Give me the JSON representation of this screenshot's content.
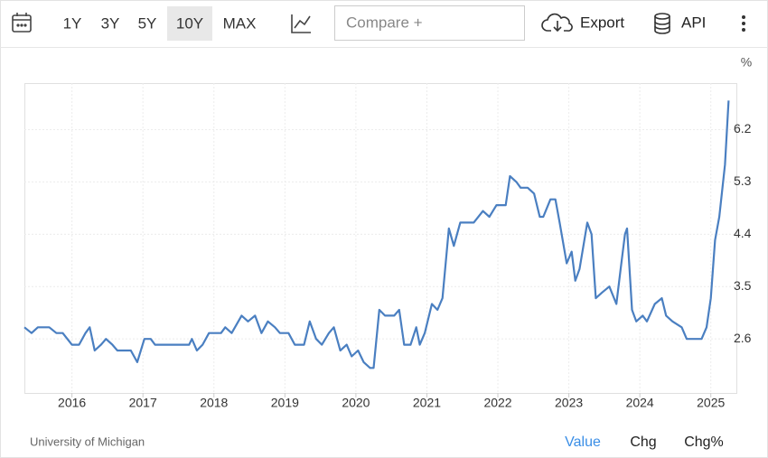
{
  "toolbar": {
    "ranges": [
      "1Y",
      "3Y",
      "5Y",
      "10Y",
      "MAX"
    ],
    "selected": 3,
    "compare": "Compare +",
    "export": "Export",
    "api": "API"
  },
  "footer": {
    "source": "University of Michigan",
    "tabs": [
      "Value",
      "Chg",
      "Chg%"
    ],
    "active": 0
  },
  "chart_data": {
    "type": "line",
    "y_label": "%",
    "color": "#4a7fc1",
    "grid": true,
    "xlim": [
      2015.33,
      2025.36
    ],
    "xticks": [
      2016,
      2017,
      2018,
      2019,
      2020,
      2021,
      2022,
      2023,
      2024,
      2025
    ],
    "ylim": [
      1.67,
      7.0
    ],
    "yticks": [
      2.6,
      3.5,
      4.4,
      5.3,
      6.2
    ],
    "x": [
      2015.33,
      2015.43,
      2015.52,
      2015.68,
      2015.78,
      2015.87,
      2016.0,
      2016.1,
      2016.19,
      2016.25,
      2016.32,
      2016.41,
      2016.48,
      2016.57,
      2016.64,
      2016.83,
      2016.92,
      2017.02,
      2017.11,
      2017.17,
      2017.27,
      2017.34,
      2017.65,
      2017.69,
      2017.76,
      2017.84,
      2017.93,
      2018.1,
      2018.16,
      2018.25,
      2018.39,
      2018.48,
      2018.58,
      2018.67,
      2018.76,
      2018.86,
      2018.93,
      2019.05,
      2019.14,
      2019.27,
      2019.35,
      2019.44,
      2019.52,
      2019.62,
      2019.69,
      2019.78,
      2019.87,
      2019.94,
      2020.03,
      2020.11,
      2020.2,
      2020.25,
      2020.33,
      2020.41,
      2020.54,
      2020.61,
      2020.68,
      2020.77,
      2020.85,
      2020.9,
      2020.97,
      2021.07,
      2021.15,
      2021.22,
      2021.31,
      2021.38,
      2021.47,
      2021.57,
      2021.66,
      2021.79,
      2021.88,
      2021.98,
      2022.04,
      2022.11,
      2022.17,
      2022.26,
      2022.32,
      2022.42,
      2022.51,
      2022.59,
      2022.64,
      2022.74,
      2022.81,
      2022.87,
      2022.97,
      2023.04,
      2023.09,
      2023.15,
      2023.26,
      2023.32,
      2023.38,
      2023.47,
      2023.57,
      2023.67,
      2023.73,
      2023.79,
      2023.82,
      2023.89,
      2023.95,
      2024.04,
      2024.1,
      2024.21,
      2024.31,
      2024.37,
      2024.46,
      2024.59,
      2024.66,
      2024.78,
      2024.87,
      2024.94,
      2025.0,
      2025.06,
      2025.12,
      2025.2,
      2025.25
    ],
    "values": [
      2.8,
      2.7,
      2.8,
      2.8,
      2.7,
      2.7,
      2.5,
      2.5,
      2.7,
      2.8,
      2.4,
      2.5,
      2.6,
      2.5,
      2.4,
      2.4,
      2.2,
      2.6,
      2.6,
      2.5,
      2.5,
      2.5,
      2.5,
      2.6,
      2.4,
      2.5,
      2.7,
      2.7,
      2.8,
      2.7,
      3.0,
      2.9,
      3.0,
      2.7,
      2.9,
      2.8,
      2.7,
      2.7,
      2.5,
      2.5,
      2.9,
      2.6,
      2.5,
      2.7,
      2.8,
      2.4,
      2.5,
      2.3,
      2.4,
      2.2,
      2.1,
      2.1,
      3.1,
      3.0,
      3.0,
      3.1,
      2.5,
      2.5,
      2.8,
      2.5,
      2.7,
      3.2,
      3.1,
      3.3,
      4.5,
      4.2,
      4.6,
      4.6,
      4.6,
      4.8,
      4.7,
      4.9,
      4.9,
      4.9,
      5.4,
      5.3,
      5.2,
      5.2,
      5.1,
      4.7,
      4.7,
      5.0,
      5.0,
      4.6,
      3.9,
      4.1,
      3.6,
      3.8,
      4.6,
      4.4,
      3.3,
      3.4,
      3.5,
      3.2,
      3.8,
      4.4,
      4.5,
      3.1,
      2.9,
      3.0,
      2.9,
      3.2,
      3.3,
      3.0,
      2.9,
      2.8,
      2.6,
      2.6,
      2.6,
      2.8,
      3.3,
      4.3,
      4.7,
      5.6,
      6.7
    ]
  }
}
